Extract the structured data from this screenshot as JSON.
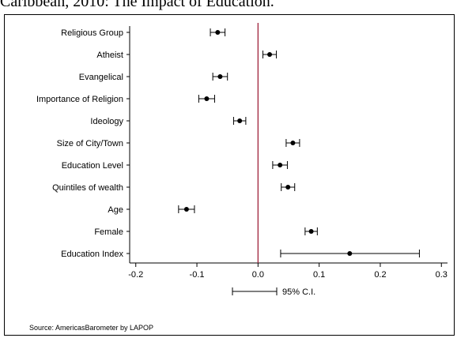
{
  "caption": "Caribbean, 2010: The Impact of Education.",
  "source": "Source: AmericasBarometer by LAPOP",
  "chart_data": {
    "type": "scatter",
    "title": "",
    "xlabel": "",
    "ylabel": "",
    "xlim": [
      -0.21,
      0.31
    ],
    "xticks": [
      -0.2,
      -0.1,
      0.0,
      0.1,
      0.2,
      0.3
    ],
    "xtick_labels": [
      "-0.2",
      "-0.1",
      "0.0",
      "0.1",
      "0.2",
      "0.3"
    ],
    "reference_line": 0.0,
    "reference_color": "#a0233c",
    "ci_legend_label": "95% C.I.",
    "grid": false,
    "categories": [
      "Religious Group",
      "Atheist",
      "Evangelical",
      "Importance of Religion",
      "Ideology",
      "Size of City/Town",
      "Education Level",
      "Quintiles of wealth",
      "Age",
      "Female",
      "Education Index"
    ],
    "values": [
      -0.066,
      0.019,
      -0.062,
      -0.084,
      -0.03,
      0.057,
      0.036,
      0.049,
      -0.117,
      0.087,
      0.15
    ],
    "ci_low": [
      -0.078,
      0.008,
      -0.074,
      -0.097,
      -0.04,
      0.046,
      0.024,
      0.038,
      -0.13,
      0.077,
      0.037
    ],
    "ci_high": [
      -0.054,
      0.03,
      -0.05,
      -0.071,
      -0.02,
      0.068,
      0.048,
      0.06,
      -0.104,
      0.097,
      0.264
    ]
  }
}
